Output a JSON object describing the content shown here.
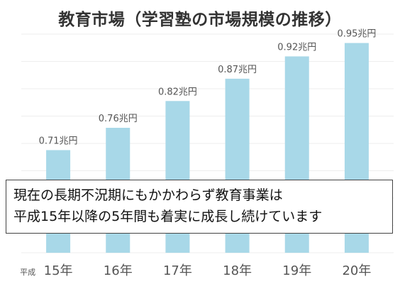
{
  "chart_data": {
    "type": "bar",
    "title": "教育市場（学習塾の市場規模の推移）",
    "categories": [
      "15年",
      "16年",
      "17年",
      "18年",
      "19年",
      "20年"
    ],
    "category_prefix": "平成",
    "values": [
      0.71,
      0.76,
      0.82,
      0.87,
      0.92,
      0.95
    ],
    "data_labels": [
      "0.71兆円",
      "0.76兆円",
      "0.82兆円",
      "0.87兆円",
      "0.92兆円",
      "0.95兆円"
    ],
    "unit": "兆円",
    "ylim": [
      0.48,
      0.97
    ],
    "grid": true,
    "annotation": {
      "line1": "現在の長期不況期にもかかわらず教育事業は",
      "line2": "平成15年以降の5年間も着実に成長し続けています"
    }
  },
  "colors": {
    "bar": "#a8d8e8",
    "title": "#333333",
    "axis_text": "#555555",
    "grid": "#eeeeee"
  }
}
